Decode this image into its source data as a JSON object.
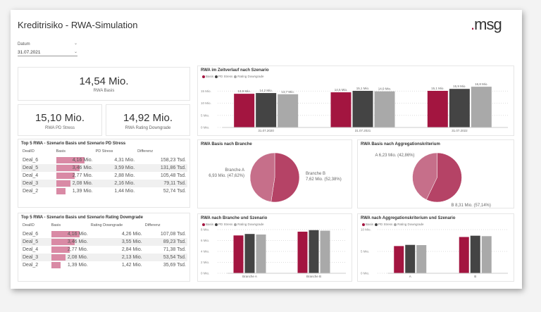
{
  "header": {
    "title": "Kreditrisiko - RWA-Simulation",
    "logo": ".msg"
  },
  "slicer": {
    "label": "Datum",
    "value": "31.07.2021"
  },
  "kpis": [
    {
      "value": "14,54 Mio.",
      "label": "RWA Basis"
    },
    {
      "value": "15,10 Mio.",
      "label": "RWA PD Stress"
    },
    {
      "value": "14,92 Mio.",
      "label": "RWA Rating Downgrade"
    }
  ],
  "colors": {
    "basis": "#a31540",
    "pd_stress": "#444444",
    "rating_downgrade": "#a9a9a9",
    "pie_a": "#c66f8a",
    "pie_b": "#b54366",
    "table_bar": "#d98aa5"
  },
  "legend": [
    "Basis",
    "PD Stress",
    "Rating Downgrade"
  ],
  "table1": {
    "title": "Top 5 RWA - Szenario Basis und Szenario PD Stress",
    "columns": [
      "DealID",
      "Basis",
      "PD Stress",
      "Differenz"
    ],
    "rows": [
      [
        "Deal_6",
        "4,16 Mio.",
        "4,31 Mio.",
        "158,23 Tsd."
      ],
      [
        "Deal_5",
        "3,46 Mio.",
        "3,59 Mio.",
        "131,86 Tsd."
      ],
      [
        "Deal_4",
        "2,77 Mio.",
        "2,88 Mio.",
        "105,48 Tsd."
      ],
      [
        "Deal_3",
        "2,08 Mio.",
        "2,16 Mio.",
        "79,11 Tsd."
      ],
      [
        "Deal_2",
        "1,39 Mio.",
        "1,44 Mio.",
        "52,74 Tsd."
      ]
    ],
    "basis": [
      4.16,
      3.46,
      2.77,
      2.08,
      1.39
    ]
  },
  "table2": {
    "title": "Top 5 RWA - Szenario Basis und Szenario Rating Downgrade",
    "columns": [
      "DealID",
      "Basis",
      "Rating Downgrade",
      "Differenz"
    ],
    "rows": [
      [
        "Deal_6",
        "4,16 Mio.",
        "4,26 Mio.",
        "107,08 Tsd."
      ],
      [
        "Deal_5",
        "3,46 Mio.",
        "3,55 Mio.",
        "89,23 Tsd."
      ],
      [
        "Deal_4",
        "2,77 Mio.",
        "2,84 Mio.",
        "71,38 Tsd."
      ],
      [
        "Deal_3",
        "2,08 Mio.",
        "2,13 Mio.",
        "53,54 Tsd."
      ],
      [
        "Deal_2",
        "1,39 Mio.",
        "1,42 Mio.",
        "35,69 Tsd."
      ]
    ],
    "basis": [
      4.16,
      3.46,
      2.77,
      2.08,
      1.39
    ]
  },
  "chart_data": [
    {
      "type": "bar",
      "title": "RWA im Zeitverlauf nach Szenario",
      "categories": [
        "31.07.2020",
        "31.07.2021",
        "31.07.2022"
      ],
      "ylim": [
        0,
        18
      ],
      "ticks": [
        "0 Mio.",
        "5 Mio.",
        "10 Mio.",
        "15 Mio."
      ],
      "tick_values": [
        0,
        5,
        10,
        15
      ],
      "series": [
        {
          "name": "Basis",
          "values": [
            13.9,
            14.5,
            15.1
          ],
          "labels": [
            "13,9 Mio.",
            "14,5 Mio.",
            "15,1 Mio."
          ]
        },
        {
          "name": "PD Stress",
          "values": [
            14.2,
            15.1,
            15.9
          ],
          "labels": [
            "14,2 Mio.",
            "15,1 Mio.",
            "15,9 Mio."
          ]
        },
        {
          "name": "Rating Downgrade",
          "values": [
            13.7,
            14.9,
            16.8
          ],
          "labels": [
            "13,7 Mio.",
            "14,9 Mio.",
            "16,8 Mio."
          ]
        }
      ]
    },
    {
      "type": "pie",
      "title": "RWA Basis nach Branche",
      "slices": [
        {
          "label": "Branche A",
          "value": 6.93,
          "text": "6,93 Mio. (47,62%)"
        },
        {
          "label": "Branche B",
          "value": 7.62,
          "text": "7,62 Mio. (52,38%)"
        }
      ]
    },
    {
      "type": "pie",
      "title": "RWA Basis nach Aggregationskriterium",
      "slices": [
        {
          "label": "A",
          "value": 6.23,
          "text": "6,23 Mio. (42,86%)"
        },
        {
          "label": "B",
          "value": 8.31,
          "text": "8,31 Mio. (57,14%)"
        }
      ]
    },
    {
      "type": "bar",
      "title": "RWA nach Branche und Szenario",
      "categories": [
        "Branche A",
        "Branche B"
      ],
      "ylim": [
        0,
        8
      ],
      "ticks": [
        "0 Mio.",
        "2 Mio.",
        "4 Mio.",
        "6 Mio.",
        "8 Mio."
      ],
      "tick_values": [
        0,
        2,
        4,
        6,
        8
      ],
      "series": [
        {
          "name": "Basis",
          "values": [
            6.93,
            7.62
          ]
        },
        {
          "name": "PD Stress",
          "values": [
            7.2,
            7.9
          ]
        },
        {
          "name": "Rating Downgrade",
          "values": [
            7.1,
            7.8
          ]
        }
      ]
    },
    {
      "type": "bar",
      "title": "RWA nach Aggregationskriterium und Szenario",
      "categories": [
        "A",
        "B"
      ],
      "ylim": [
        0,
        10
      ],
      "ticks": [
        "0 Mio.",
        "5 Mio.",
        "10 Mio."
      ],
      "tick_values": [
        0,
        5,
        10
      ],
      "series": [
        {
          "name": "Basis",
          "values": [
            6.23,
            8.31
          ]
        },
        {
          "name": "PD Stress",
          "values": [
            6.5,
            8.6
          ]
        },
        {
          "name": "Rating Downgrade",
          "values": [
            6.45,
            8.5
          ]
        }
      ]
    }
  ]
}
